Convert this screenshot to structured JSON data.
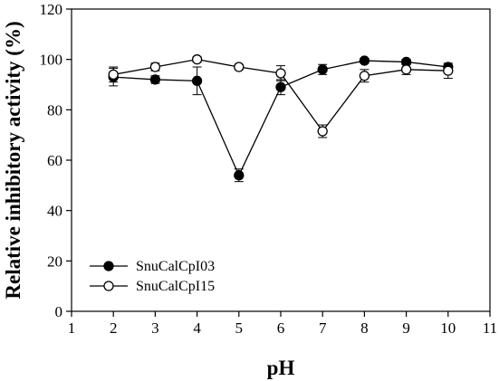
{
  "chart_data": {
    "type": "line",
    "xlabel": "pH",
    "ylabel": "Relative inhibitory activity (%)",
    "xlim": [
      1,
      11
    ],
    "ylim": [
      0,
      120
    ],
    "xticks": [
      1,
      2,
      3,
      4,
      5,
      6,
      7,
      8,
      9,
      10,
      11
    ],
    "yticks": [
      0,
      20,
      40,
      60,
      80,
      100,
      120
    ],
    "grid": false,
    "legend_position": "bottom-left",
    "x": [
      2,
      3,
      4,
      5,
      6,
      7,
      8,
      9,
      10
    ],
    "series": [
      {
        "name": "SnuCalCpI03",
        "marker": "filled-circle",
        "color": "#000000",
        "values": [
          93,
          92,
          91.5,
          54,
          89,
          96,
          99.5,
          99,
          97
        ],
        "errors": [
          3.5,
          1.5,
          5.5,
          2.5,
          3,
          2,
          1,
          1,
          1
        ]
      },
      {
        "name": "SnuCalCpI15",
        "marker": "open-circle",
        "color": "#000000",
        "values": [
          94,
          97,
          100,
          97,
          94.5,
          71.5,
          93.5,
          96,
          95.5
        ],
        "errors": [
          3,
          1.5,
          1,
          1,
          3,
          2.5,
          2.5,
          2,
          3
        ]
      }
    ]
  }
}
